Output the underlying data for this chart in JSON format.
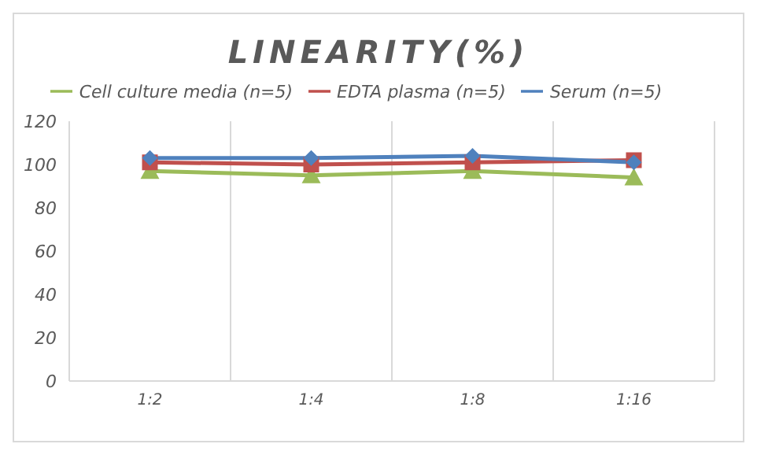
{
  "chart_data": {
    "type": "line",
    "title": "LINEARITY(%)",
    "categories": [
      "1:2",
      "1:4",
      "1:8",
      "1:16"
    ],
    "series": [
      {
        "name": "Serum (n=5)",
        "color": "#4f81bd",
        "marker": "diamond",
        "values": [
          103,
          103,
          104,
          101
        ]
      },
      {
        "name": "EDTA plasma (n=5)",
        "color": "#c0504d",
        "marker": "square",
        "values": [
          101,
          100,
          101,
          102
        ]
      },
      {
        "name": "Cell culture media (n=5)",
        "color": "#9bbb59",
        "marker": "triangle",
        "values": [
          97,
          95,
          97,
          94
        ]
      }
    ],
    "ylim": [
      0,
      120
    ],
    "yticks": [
      0,
      20,
      40,
      60,
      80,
      100,
      120
    ],
    "grid": "x",
    "legend": "top"
  }
}
